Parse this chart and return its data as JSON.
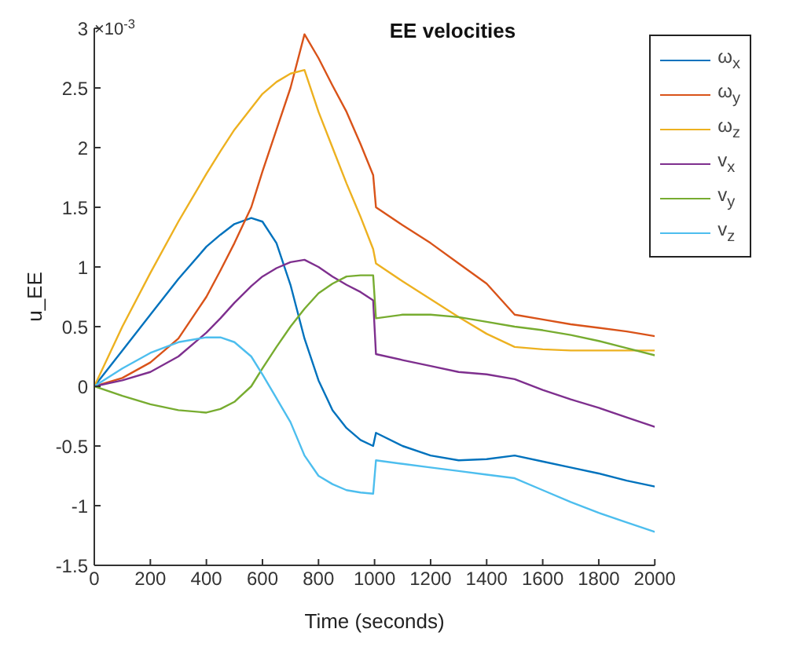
{
  "chart_data": {
    "type": "line",
    "title": "EE velocities",
    "xlabel": "Time (seconds)",
    "ylabel": "u_EE",
    "annotations": [
      "×10$^{-3}$"
    ],
    "x": [
      0,
      100,
      200,
      300,
      400,
      450,
      500,
      560,
      600,
      650,
      700,
      750,
      800,
      850,
      900,
      950,
      995,
      1005,
      1100,
      1200,
      1300,
      1400,
      1500,
      1600,
      1700,
      1800,
      1900,
      2000
    ],
    "series": [
      {
        "name": "ω$_{x}$",
        "color": "#0072bd",
        "values": [
          0,
          0.3,
          0.6,
          0.9,
          1.17,
          1.27,
          1.36,
          1.41,
          1.38,
          1.2,
          0.85,
          0.4,
          0.05,
          -0.2,
          -0.35,
          -0.45,
          -0.5,
          -0.39,
          -0.5,
          -0.58,
          -0.62,
          -0.61,
          -0.58,
          -0.63,
          -0.68,
          -0.73,
          -0.79,
          -0.84
        ]
      },
      {
        "name": "ω$_{y}$",
        "color": "#d95319",
        "values": [
          0,
          0.07,
          0.2,
          0.4,
          0.75,
          0.97,
          1.2,
          1.5,
          1.8,
          2.15,
          2.5,
          2.95,
          2.75,
          2.52,
          2.3,
          2.03,
          1.77,
          1.5,
          1.35,
          1.2,
          1.03,
          0.86,
          0.6,
          0.56,
          0.52,
          0.49,
          0.46,
          0.42
        ]
      },
      {
        "name": "ω$_{z}$",
        "color": "#edb120",
        "values": [
          0,
          0.5,
          0.95,
          1.38,
          1.78,
          1.97,
          2.15,
          2.33,
          2.45,
          2.55,
          2.62,
          2.65,
          2.3,
          2,
          1.7,
          1.42,
          1.15,
          1.03,
          0.88,
          0.73,
          0.58,
          0.44,
          0.33,
          0.31,
          0.3,
          0.3,
          0.3,
          0.3
        ]
      },
      {
        "name": "v$_{x}$",
        "color": "#7e2f8e",
        "values": [
          0,
          0.05,
          0.12,
          0.25,
          0.45,
          0.57,
          0.7,
          0.84,
          0.92,
          0.99,
          1.04,
          1.06,
          1,
          0.92,
          0.85,
          0.79,
          0.72,
          0.27,
          0.22,
          0.17,
          0.12,
          0.1,
          0.06,
          -0.03,
          -0.11,
          -0.18,
          -0.26,
          -0.34
        ]
      },
      {
        "name": "v$_{y}$",
        "color": "#77ac30",
        "values": [
          0,
          -0.08,
          -0.15,
          -0.2,
          -0.22,
          -0.19,
          -0.13,
          0,
          0.15,
          0.33,
          0.5,
          0.65,
          0.78,
          0.86,
          0.92,
          0.93,
          0.93,
          0.57,
          0.6,
          0.6,
          0.58,
          0.54,
          0.5,
          0.47,
          0.43,
          0.38,
          0.32,
          0.26
        ]
      },
      {
        "name": "v$_{z}$",
        "color": "#4dbeee",
        "values": [
          0,
          0.15,
          0.28,
          0.37,
          0.41,
          0.41,
          0.37,
          0.25,
          0.1,
          -0.1,
          -0.3,
          -0.58,
          -0.75,
          -0.82,
          -0.87,
          -0.89,
          -0.9,
          -0.62,
          -0.65,
          -0.68,
          -0.71,
          -0.74,
          -0.77,
          -0.87,
          -0.97,
          -1.06,
          -1.14,
          -1.22
        ]
      }
    ],
    "xlim": [
      0,
      2000
    ],
    "xticks": [
      0,
      200,
      400,
      600,
      800,
      1000,
      1200,
      1400,
      1600,
      1800,
      2000
    ],
    "ylim": [
      -1.5,
      3
    ],
    "yticks": [
      -1.5,
      -1,
      -0.5,
      0,
      0.5,
      1,
      1.5,
      2,
      2.5,
      3
    ],
    "grid": false,
    "legend": "top right",
    "marker": "none",
    "line_style": "solid"
  }
}
